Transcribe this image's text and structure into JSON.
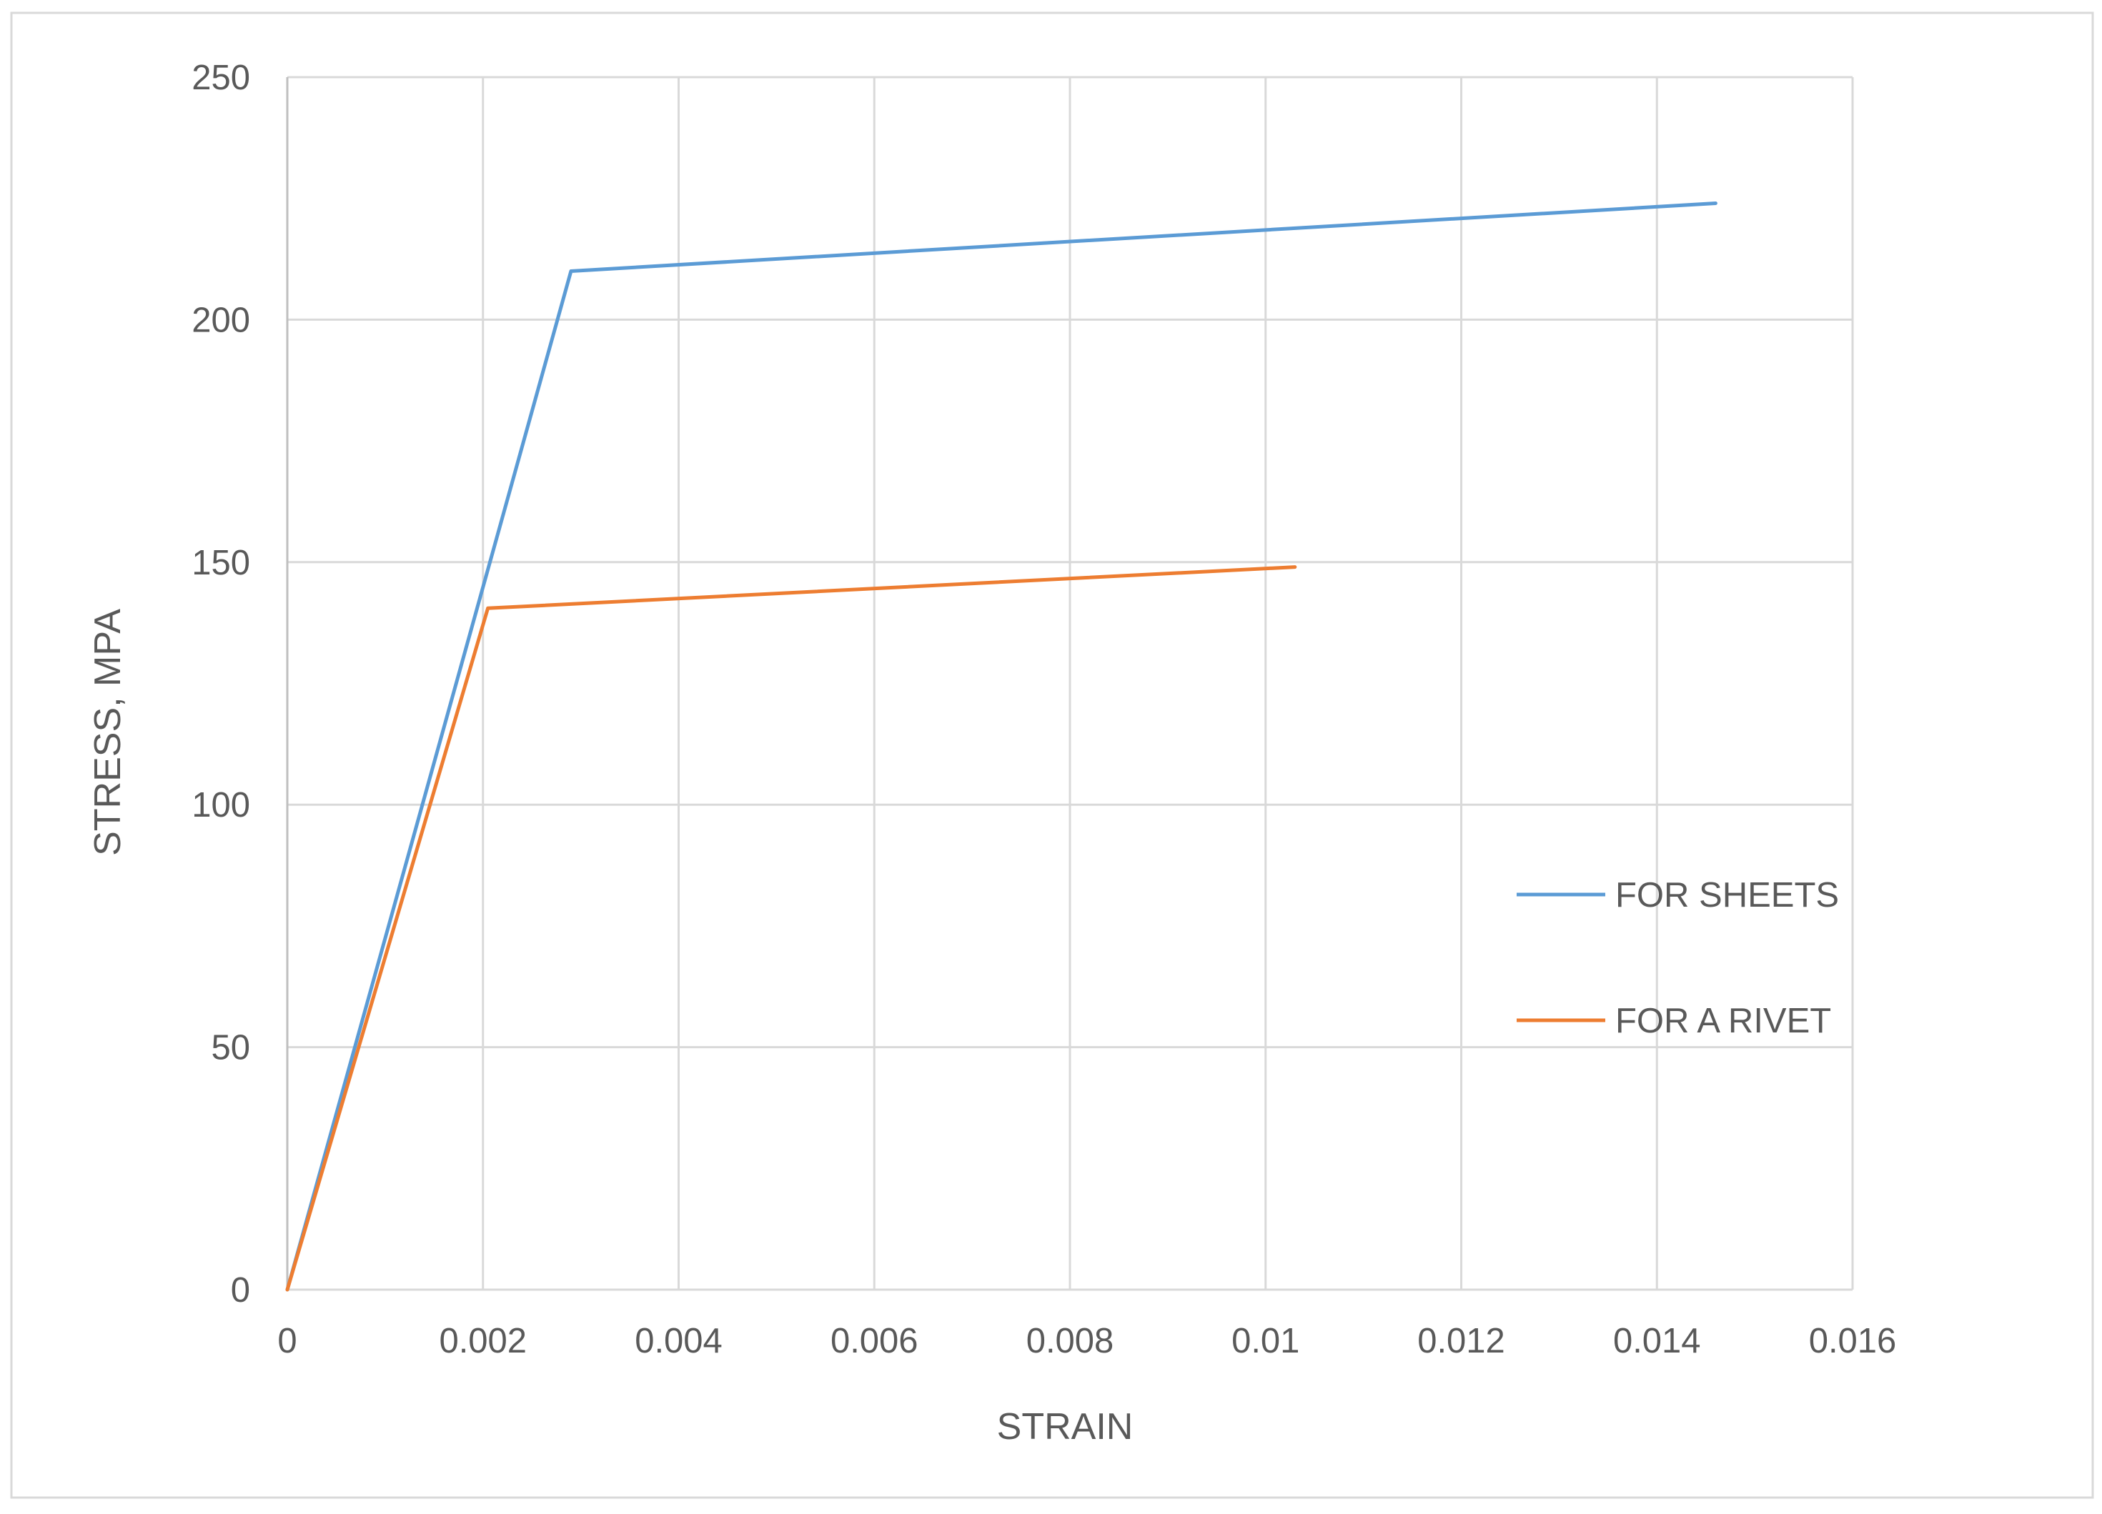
{
  "chart_data": {
    "type": "line",
    "title": "",
    "xlabel": "STRAIN",
    "ylabel": "STRESS, MPA",
    "xlim": [
      0,
      0.016
    ],
    "ylim": [
      0,
      250
    ],
    "x_ticks": [
      "0",
      "0.002",
      "0.004",
      "0.006",
      "0.008",
      "0.01",
      "0.012",
      "0.014",
      "0.016"
    ],
    "y_ticks": [
      "0",
      "50",
      "100",
      "150",
      "200",
      "250"
    ],
    "x_tick_values": [
      0,
      0.002,
      0.004,
      0.006,
      0.008,
      0.01,
      0.012,
      0.014,
      0.016
    ],
    "y_tick_values": [
      0,
      50,
      100,
      150,
      200,
      250
    ],
    "grid": true,
    "legend_position": "right",
    "series": [
      {
        "name": "FOR SHEETS",
        "color": "#5b9bd5",
        "x": [
          0,
          0.0029,
          0.0146
        ],
        "y": [
          0,
          210,
          224
        ]
      },
      {
        "name": "FOR A RIVET",
        "color": "#ed7d31",
        "x": [
          0,
          0.00205,
          0.0103
        ],
        "y": [
          0,
          140.5,
          149
        ]
      }
    ]
  }
}
